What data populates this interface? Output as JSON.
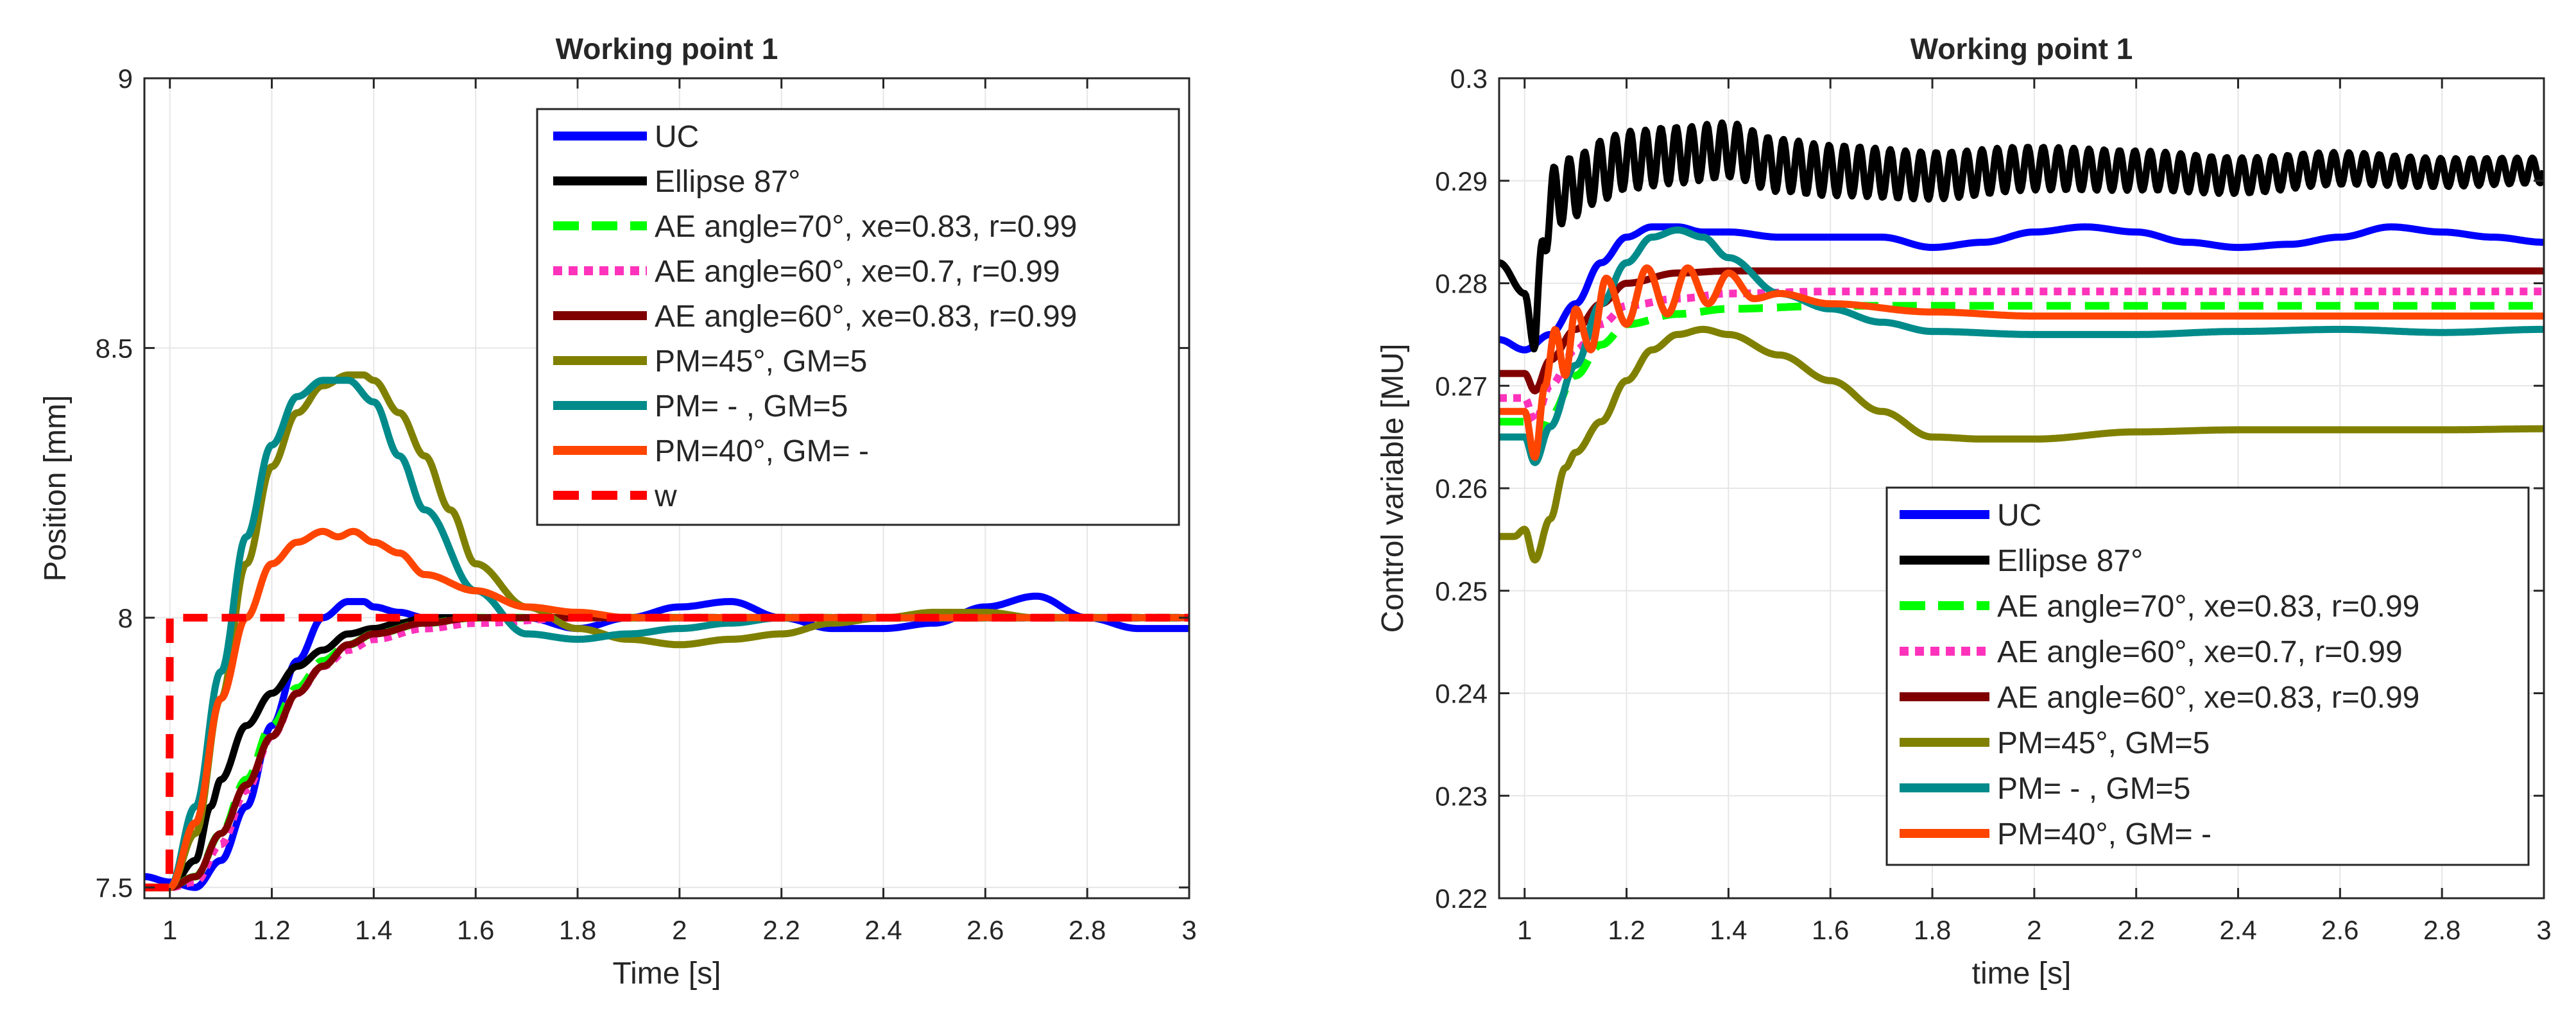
{
  "figure": {
    "background": "#ffffff",
    "grid_color": "#e6e6e6",
    "axis_color": "#262626"
  },
  "chart_data": [
    {
      "type": "line",
      "title": "Working point 1",
      "xlabel": "Time [s]",
      "ylabel": "Position [mm]",
      "xlim": [
        0.95,
        3
      ],
      "ylim": [
        7.48,
        9
      ],
      "xticks": [
        1,
        1.2,
        1.4,
        1.6,
        1.8,
        2,
        2.2,
        2.4,
        2.6,
        2.8,
        3
      ],
      "xtick_labels": [
        "1",
        "1.2",
        "1.4",
        "1.6",
        "1.8",
        "2",
        "2.2",
        "2.4",
        "2.6",
        "2.8",
        "3"
      ],
      "yticks": [
        7.5,
        8,
        8.5,
        9
      ],
      "ytick_labels": [
        "7.5",
        "8",
        "8.5",
        "9"
      ],
      "grid": true,
      "legend_position": "top-right",
      "series": [
        {
          "name": "UC",
          "color": "#0000ff",
          "style": "solid",
          "x": [
            0.95,
            1.0,
            1.05,
            1.1,
            1.15,
            1.2,
            1.25,
            1.3,
            1.35,
            1.38,
            1.4,
            1.45,
            1.5,
            1.6,
            1.7,
            1.8,
            1.9,
            2.0,
            2.1,
            2.2,
            2.3,
            2.4,
            2.5,
            2.6,
            2.7,
            2.8,
            2.9,
            3.0
          ],
          "y": [
            7.52,
            7.51,
            7.5,
            7.55,
            7.65,
            7.8,
            7.92,
            8.0,
            8.03,
            8.03,
            8.02,
            8.01,
            8.0,
            8.0,
            8.0,
            7.98,
            8.0,
            8.02,
            8.03,
            8.0,
            7.98,
            7.98,
            7.99,
            8.02,
            8.04,
            8.0,
            7.98,
            7.98
          ]
        },
        {
          "name": "Ellipse 87°",
          "color": "#000000",
          "style": "solid",
          "x": [
            0.95,
            1.0,
            1.05,
            1.08,
            1.1,
            1.15,
            1.2,
            1.25,
            1.3,
            1.35,
            1.4,
            1.45,
            1.5,
            1.6,
            1.8,
            2.0,
            2.5,
            3.0
          ],
          "y": [
            7.5,
            7.5,
            7.55,
            7.65,
            7.7,
            7.8,
            7.86,
            7.91,
            7.94,
            7.97,
            7.98,
            7.99,
            8.0,
            8.0,
            8.0,
            8.0,
            8.0,
            8.0
          ]
        },
        {
          "name": "AE angle=70°, xe=0.83, r=0.99",
          "color": "#00ff00",
          "style": "dashed",
          "x": [
            0.95,
            1.0,
            1.05,
            1.1,
            1.15,
            1.2,
            1.25,
            1.3,
            1.35,
            1.4,
            1.5,
            1.6,
            1.8,
            2.0,
            2.5,
            3.0
          ],
          "y": [
            7.5,
            7.5,
            7.52,
            7.6,
            7.7,
            7.8,
            7.87,
            7.92,
            7.95,
            7.97,
            7.99,
            8.0,
            8.0,
            8.0,
            8.0,
            8.0
          ]
        },
        {
          "name": "AE angle=60°, xe=0.7, r=0.99",
          "color": "#ff33bb",
          "style": "dotted",
          "x": [
            0.95,
            1.0,
            1.05,
            1.1,
            1.15,
            1.2,
            1.25,
            1.3,
            1.35,
            1.4,
            1.5,
            1.6,
            1.8,
            2.0,
            2.5,
            3.0
          ],
          "y": [
            7.5,
            7.5,
            7.51,
            7.58,
            7.68,
            7.78,
            7.86,
            7.91,
            7.94,
            7.96,
            7.98,
            7.99,
            8.0,
            8.0,
            8.0,
            8.0
          ]
        },
        {
          "name": "AE angle=60°, xe=0.83, r=0.99",
          "color": "#800000",
          "style": "solid",
          "x": [
            0.95,
            1.0,
            1.05,
            1.1,
            1.15,
            1.2,
            1.25,
            1.3,
            1.35,
            1.4,
            1.5,
            1.6,
            1.8,
            2.0,
            2.5,
            3.0
          ],
          "y": [
            7.5,
            7.5,
            7.52,
            7.6,
            7.69,
            7.78,
            7.86,
            7.91,
            7.95,
            7.97,
            7.99,
            8.0,
            8.0,
            8.0,
            8.0,
            8.0
          ]
        },
        {
          "name": "PM=45°, GM=5",
          "color": "#808000",
          "style": "solid",
          "x": [
            0.95,
            1.0,
            1.05,
            1.1,
            1.15,
            1.2,
            1.25,
            1.3,
            1.35,
            1.38,
            1.4,
            1.45,
            1.5,
            1.55,
            1.6,
            1.7,
            1.8,
            1.9,
            2.0,
            2.1,
            2.2,
            2.3,
            2.4,
            2.5,
            2.6,
            2.7,
            2.8,
            2.9,
            3.0
          ],
          "y": [
            7.5,
            7.5,
            7.6,
            7.85,
            8.1,
            8.28,
            8.38,
            8.43,
            8.45,
            8.45,
            8.44,
            8.38,
            8.3,
            8.2,
            8.1,
            8.02,
            7.98,
            7.96,
            7.95,
            7.96,
            7.97,
            7.99,
            8.0,
            8.01,
            8.01,
            8.0,
            8.0,
            8.0,
            8.0
          ]
        },
        {
          "name": "PM=   - , GM=5",
          "color": "#008b8b",
          "style": "solid",
          "x": [
            0.95,
            1.0,
            1.05,
            1.1,
            1.15,
            1.2,
            1.25,
            1.3,
            1.33,
            1.35,
            1.4,
            1.45,
            1.5,
            1.6,
            1.7,
            1.8,
            1.9,
            2.0,
            2.1,
            2.2,
            2.3,
            2.4,
            2.5,
            2.6,
            2.7,
            2.8,
            2.9,
            3.0
          ],
          "y": [
            7.5,
            7.5,
            7.65,
            7.9,
            8.15,
            8.32,
            8.41,
            8.44,
            8.44,
            8.44,
            8.4,
            8.3,
            8.2,
            8.05,
            7.97,
            7.96,
            7.97,
            7.98,
            7.99,
            8.0,
            8.0,
            8.0,
            8.0,
            8.0,
            8.0,
            8.0,
            8.0,
            8.0
          ]
        },
        {
          "name": "PM=40°, GM= -",
          "color": "#ff4500",
          "style": "solid",
          "x": [
            0.95,
            1.0,
            1.05,
            1.1,
            1.15,
            1.2,
            1.25,
            1.3,
            1.33,
            1.36,
            1.4,
            1.45,
            1.5,
            1.6,
            1.7,
            1.8,
            1.9,
            2.0,
            2.5,
            3.0
          ],
          "y": [
            7.5,
            7.5,
            7.62,
            7.85,
            8.0,
            8.1,
            8.14,
            8.16,
            8.15,
            8.16,
            8.14,
            8.12,
            8.08,
            8.05,
            8.02,
            8.01,
            8.0,
            8.0,
            8.0,
            8.0
          ]
        },
        {
          "name": "w",
          "color": "#ff0000",
          "style": "dashed",
          "x": [
            0.95,
            0.999,
            1.0,
            3.0
          ],
          "y": [
            7.5,
            7.5,
            8.0,
            8.0
          ]
        }
      ]
    },
    {
      "type": "line",
      "title": "Working point 1",
      "xlabel": "time [s]",
      "ylabel": "Control variable [MU]",
      "xlim": [
        0.95,
        3
      ],
      "ylim": [
        0.22,
        0.3
      ],
      "xticks": [
        1,
        1.2,
        1.4,
        1.6,
        1.8,
        2,
        2.2,
        2.4,
        2.6,
        2.8,
        3
      ],
      "xtick_labels": [
        "1",
        "1.2",
        "1.4",
        "1.6",
        "1.8",
        "2",
        "2.2",
        "2.4",
        "2.6",
        "2.8",
        "3"
      ],
      "yticks": [
        0.22,
        0.23,
        0.24,
        0.25,
        0.26,
        0.27,
        0.28,
        0.29,
        0.3
      ],
      "ytick_labels": [
        "0.22",
        "0.23",
        "0.24",
        "0.25",
        "0.26",
        "0.27",
        "0.28",
        "0.29",
        "0.3"
      ],
      "grid": true,
      "legend_position": "bottom-right",
      "series": [
        {
          "name": "UC",
          "color": "#0000ff",
          "style": "solid",
          "x": [
            0.95,
            1.0,
            1.05,
            1.1,
            1.15,
            1.2,
            1.25,
            1.3,
            1.35,
            1.4,
            1.5,
            1.6,
            1.7,
            1.8,
            1.9,
            2.0,
            2.1,
            2.2,
            2.3,
            2.4,
            2.5,
            2.6,
            2.7,
            2.8,
            2.9,
            3.0
          ],
          "y": [
            0.2745,
            0.2735,
            0.275,
            0.278,
            0.282,
            0.2845,
            0.2855,
            0.2855,
            0.285,
            0.285,
            0.2845,
            0.2845,
            0.2845,
            0.2835,
            0.284,
            0.285,
            0.2855,
            0.285,
            0.284,
            0.2835,
            0.2838,
            0.2845,
            0.2855,
            0.285,
            0.2845,
            0.284
          ]
        },
        {
          "name": "Ellipse 87°",
          "color": "#000000",
          "style": "solid",
          "x": [
            0.95,
            1.0,
            1.02,
            1.04,
            1.06,
            1.1,
            1.15,
            1.2,
            1.3,
            1.4,
            1.5,
            1.6,
            1.8,
            2.0,
            2.2,
            2.4,
            2.6,
            2.8,
            3.0
          ],
          "y": [
            0.282,
            0.279,
            0.2735,
            0.286,
            0.2885,
            0.2895,
            0.291,
            0.292,
            0.2925,
            0.293,
            0.2915,
            0.291,
            0.2905,
            0.2912,
            0.291,
            0.2905,
            0.2912,
            0.2908,
            0.291
          ],
          "osc_amp": 0.003,
          "osc_decay_to": 0.0012,
          "osc_period": 0.03
        },
        {
          "name": "AE angle=70°, xe=0.83, r=0.99",
          "color": "#00ff00",
          "style": "dashed",
          "x": [
            0.95,
            1.0,
            1.02,
            1.05,
            1.1,
            1.15,
            1.2,
            1.3,
            1.4,
            1.6,
            1.8,
            2.0,
            2.5,
            3.0
          ],
          "y": [
            0.2665,
            0.2665,
            0.263,
            0.267,
            0.271,
            0.274,
            0.276,
            0.277,
            0.2775,
            0.2778,
            0.2778,
            0.2778,
            0.2778,
            0.2778
          ]
        },
        {
          "name": "AE angle=60°, xe=0.7, r=0.99",
          "color": "#ff33bb",
          "style": "dotted",
          "x": [
            0.95,
            1.0,
            1.02,
            1.05,
            1.1,
            1.15,
            1.2,
            1.3,
            1.4,
            1.6,
            1.8,
            2.0,
            2.5,
            3.0
          ],
          "y": [
            0.2688,
            0.2688,
            0.2665,
            0.27,
            0.2735,
            0.276,
            0.2778,
            0.2785,
            0.279,
            0.2792,
            0.2792,
            0.2792,
            0.2792,
            0.2792
          ]
        },
        {
          "name": "AE angle=60°, xe=0.83, r=0.99",
          "color": "#800000",
          "style": "solid",
          "x": [
            0.95,
            1.0,
            1.02,
            1.05,
            1.1,
            1.15,
            1.2,
            1.3,
            1.4,
            1.6,
            1.8,
            2.0,
            2.5,
            3.0
          ],
          "y": [
            0.2712,
            0.2712,
            0.2695,
            0.2725,
            0.2755,
            0.278,
            0.28,
            0.281,
            0.2812,
            0.2812,
            0.2812,
            0.2812,
            0.2812,
            0.2812
          ]
        },
        {
          "name": "PM=45°, GM=5",
          "color": "#808000",
          "style": "solid",
          "x": [
            0.95,
            0.98,
            1.0,
            1.02,
            1.05,
            1.08,
            1.1,
            1.15,
            1.2,
            1.25,
            1.3,
            1.35,
            1.4,
            1.5,
            1.6,
            1.7,
            1.8,
            1.9,
            2.0,
            2.2,
            2.4,
            2.6,
            2.8,
            3.0
          ],
          "y": [
            0.2553,
            0.2553,
            0.256,
            0.253,
            0.257,
            0.262,
            0.2635,
            0.2665,
            0.2705,
            0.2735,
            0.275,
            0.2755,
            0.275,
            0.273,
            0.2705,
            0.2675,
            0.265,
            0.2648,
            0.2648,
            0.2655,
            0.2657,
            0.2657,
            0.2657,
            0.2658
          ]
        },
        {
          "name": "PM=   - , GM=5",
          "color": "#008b8b",
          "style": "solid",
          "x": [
            0.95,
            1.0,
            1.02,
            1.05,
            1.1,
            1.15,
            1.2,
            1.25,
            1.3,
            1.35,
            1.4,
            1.5,
            1.6,
            1.7,
            1.8,
            2.0,
            2.2,
            2.4,
            2.6,
            2.8,
            3.0
          ],
          "y": [
            0.265,
            0.265,
            0.2625,
            0.266,
            0.272,
            0.278,
            0.282,
            0.2845,
            0.2852,
            0.2845,
            0.2825,
            0.279,
            0.2775,
            0.2762,
            0.2753,
            0.275,
            0.275,
            0.2753,
            0.2755,
            0.2752,
            0.2755
          ]
        },
        {
          "name": "PM=40°, GM= -",
          "color": "#ff4500",
          "style": "solid",
          "x": [
            0.95,
            1.0,
            1.02,
            1.04,
            1.06,
            1.08,
            1.1,
            1.13,
            1.16,
            1.2,
            1.24,
            1.28,
            1.32,
            1.36,
            1.4,
            1.45,
            1.5,
            1.6,
            1.8,
            2.0,
            2.5,
            3.0
          ],
          "y": [
            0.2675,
            0.2675,
            0.263,
            0.27,
            0.2755,
            0.271,
            0.2775,
            0.2735,
            0.2805,
            0.276,
            0.2815,
            0.277,
            0.2815,
            0.278,
            0.281,
            0.2785,
            0.279,
            0.278,
            0.2772,
            0.2768,
            0.2768,
            0.2768
          ]
        }
      ]
    }
  ]
}
